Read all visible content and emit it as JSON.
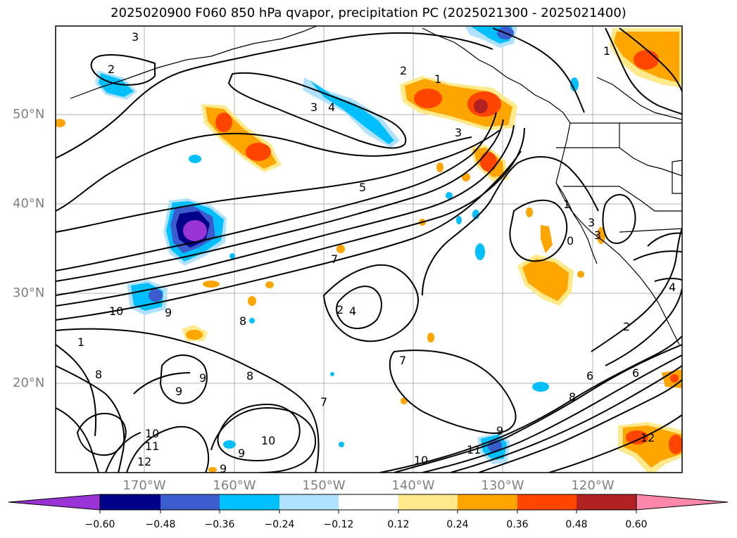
{
  "title": "2025020900 F060 850 hPa qvapor, precipitation PC (2025021300 - 2025021400)",
  "latitude_labels": [
    "50°N",
    "40°N",
    "30°N",
    "20°N"
  ],
  "longitude_labels": [
    "170°W",
    "160°W",
    "150°W",
    "140°W",
    "130°W",
    "120°W"
  ],
  "colorbar": {
    "ticks": [
      "−0.60",
      "−0.48",
      "−0.36",
      "−0.24",
      "−0.12",
      "0.12",
      "0.24",
      "0.36",
      "0.48",
      "0.60"
    ],
    "colors": [
      "#9a33d6",
      "#00008b",
      "#3a5ccc",
      "#00bfff",
      "#b0e2ff",
      "#ffffff",
      "#ffe98a",
      "#ffa500",
      "#ff4500",
      "#b22222",
      "#ff88aa"
    ]
  },
  "contour_labels": [
    "3",
    "2",
    "1",
    "3",
    "4",
    "2",
    "1",
    "3",
    "5",
    "7",
    "8",
    "10",
    "9",
    "1",
    "8",
    "9",
    "10",
    "11",
    "12",
    "9",
    "10",
    "9",
    "9",
    "8",
    "2",
    "4",
    "7",
    "7",
    "10",
    "11",
    "9",
    "8",
    "6",
    "6",
    "2",
    "4",
    "3",
    "12",
    "0",
    "1",
    "3"
  ]
}
